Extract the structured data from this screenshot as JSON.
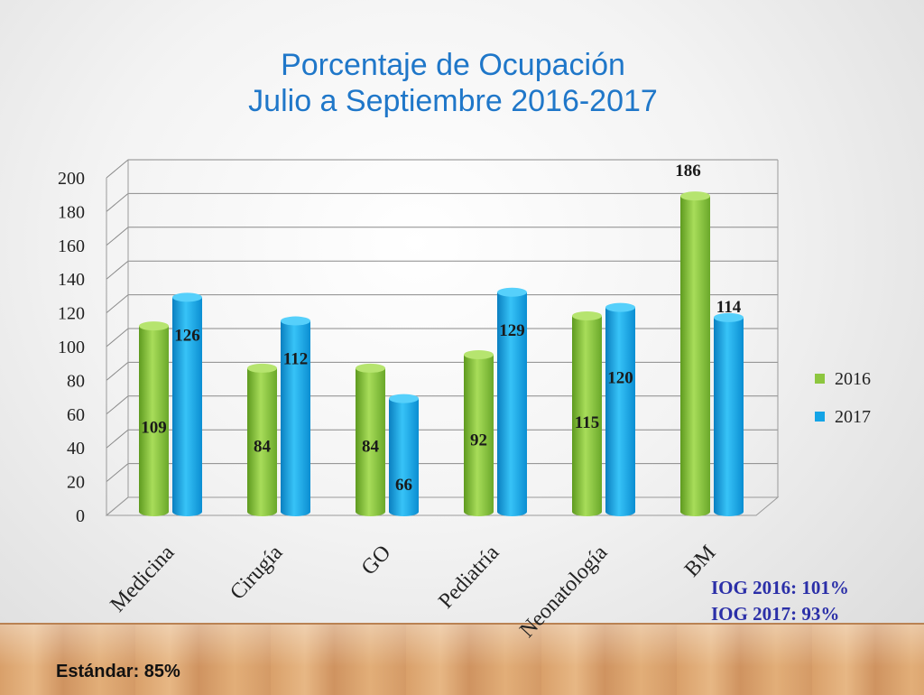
{
  "chart_data": {
    "type": "bar",
    "title": "Porcentaje de Ocupación",
    "subtitle": "Julio a Septiembre 2016-2017",
    "categories": [
      "Medicina",
      "Cirugía",
      "GO",
      "Pediatría",
      "Neonatología",
      "BM"
    ],
    "series": [
      {
        "name": "2016",
        "values": [
          109,
          84,
          84,
          92,
          115,
          186
        ],
        "color": "#8dc63f"
      },
      {
        "name": "2017",
        "values": [
          126,
          112,
          66,
          129,
          120,
          114
        ],
        "color": "#14a4e6"
      }
    ],
    "ylim": [
      0,
      200
    ],
    "yticks": [
      0,
      20,
      40,
      60,
      80,
      100,
      120,
      140,
      160,
      180,
      200
    ],
    "grid": true,
    "legend": "right"
  },
  "notes": {
    "iog_2016": "IOG 2016: 101%",
    "iog_2017": "IOG 2017: 93%",
    "standard": "Estándar: 85%"
  }
}
